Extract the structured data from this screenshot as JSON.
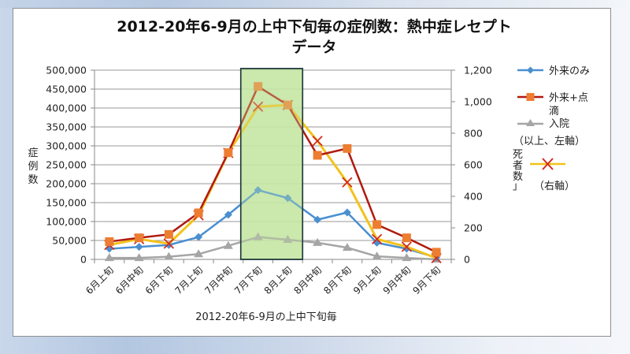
{
  "chart_data": {
    "type": "line",
    "title": "2012-20年6-9月の上中下旬毎の症例数：熱中症レセプトデータ",
    "title_lines": [
      "2012-20年6-9月の上中下旬毎の症例数：熱中症レセプト",
      "データ"
    ],
    "xlabel": "2012-20年6-9月の上中下旬毎",
    "ylabel": "症例数",
    "ylabel_chars": [
      "症",
      "例",
      "数"
    ],
    "y2label": "死者数",
    "categories": [
      "6月上旬",
      "6月中旬",
      "6月下旬",
      "7月上旬",
      "7月中旬",
      "7月下旬",
      "8月上旬",
      "8月中旬",
      "8月下旬",
      "9月上旬",
      "9月中旬",
      "9月下旬"
    ],
    "ylim": [
      0,
      500000
    ],
    "y_ticks": [
      "0",
      "50,000",
      "100,000",
      "150,000",
      "200,000",
      "250,000",
      "300,000",
      "350,000",
      "400,000",
      "450,000",
      "500,000"
    ],
    "y2lim": [
      0,
      1200
    ],
    "y2_ticks": [
      "0",
      "200",
      "400",
      "600",
      "800",
      "1,000",
      "1,200"
    ],
    "grid": true,
    "highlight_range": [
      "7月下旬",
      "8月上旬"
    ],
    "highlight_color": "#c6e6a4",
    "legend_position": "right",
    "series": [
      {
        "name": "外来のみ",
        "axis": "left",
        "color": "#4a8fd0",
        "marker": "diamond",
        "values": [
          28000,
          33000,
          38000,
          59000,
          118000,
          183000,
          162000,
          105000,
          124000,
          44000,
          28000,
          5000
        ]
      },
      {
        "name": "外来+点滴",
        "axis": "left",
        "color": "#b01a10",
        "marker": "square",
        "marker_color": "#ed7d31",
        "values": [
          47000,
          57000,
          66000,
          123000,
          282000,
          457000,
          408000,
          275000,
          293000,
          92000,
          57000,
          19000
        ]
      },
      {
        "name": "入院",
        "axis": "left",
        "color": "#a5a5a5",
        "marker": "triangle",
        "values": [
          4000,
          4000,
          7000,
          14000,
          36000,
          59000,
          52000,
          44000,
          31000,
          8000,
          4000,
          0
        ]
      },
      {
        "name": "死者数",
        "axis": "right",
        "color": "#f2c21b",
        "marker": "x",
        "marker_color": "#d42a1c",
        "values": [
          92,
          129,
          100,
          280,
          675,
          969,
          979,
          751,
          489,
          129,
          80,
          8
        ]
      }
    ]
  },
  "legend": {
    "items": [
      {
        "label": "外来のみ"
      },
      {
        "label_line1": "外来+点",
        "label_line2": "滴"
      },
      {
        "label": "入院"
      }
    ],
    "left_axis_note": "（以上、左軸）",
    "deaths_label_chars": [
      "死",
      "者",
      "数",
      "」"
    ],
    "right_axis_note": "（右軸）"
  }
}
